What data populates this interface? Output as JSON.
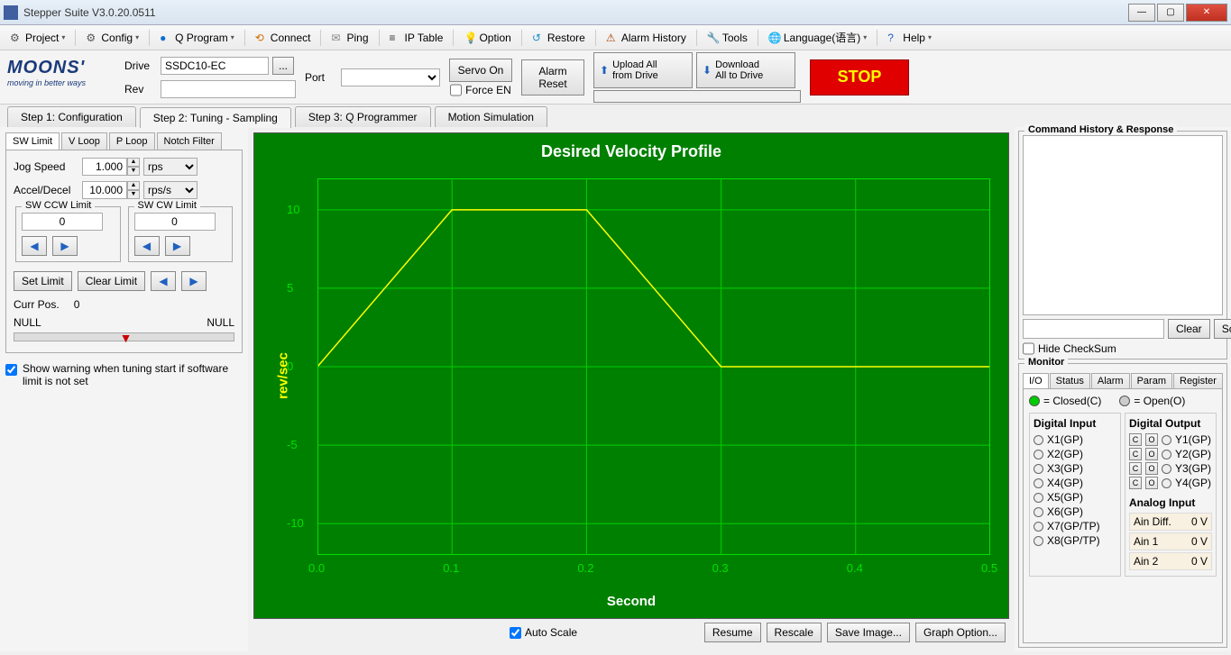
{
  "window": {
    "title": "Stepper Suite V3.0.20.0511"
  },
  "menu": [
    "Project",
    "Config",
    "Q Program",
    "Connect",
    "Ping",
    "IP Table",
    "Option",
    "Restore",
    "Alarm History",
    "Tools",
    "Language(语言)",
    "Help"
  ],
  "logo": {
    "line1": "MOONS'",
    "line2": "moving in better ways"
  },
  "top": {
    "drive_label": "Drive",
    "drive_value": "SSDC10-EC",
    "rev_label": "Rev",
    "rev_value": "",
    "port_label": "Port",
    "port_value": "",
    "servo_on": "Servo On",
    "force_en": "Force EN",
    "alarm_reset": "Alarm\nReset",
    "upload": "Upload All\nfrom Drive",
    "download": "Download\nAll to Drive",
    "stop": "STOP"
  },
  "main_tabs": [
    "Step 1: Configuration",
    "Step 2: Tuning - Sampling",
    "Step 3: Q Programmer",
    "Motion Simulation"
  ],
  "main_tab_active": 1,
  "sub_tabs": [
    "SW Limit",
    "V Loop",
    "P Loop",
    "Notch Filter"
  ],
  "sub_tab_active": 0,
  "sw": {
    "jog_label": "Jog Speed",
    "jog_val": "1.000",
    "jog_unit": "rps",
    "accel_label": "Accel/Decel",
    "accel_val": "10.000",
    "accel_unit": "rps/s",
    "ccw_title": "SW CCW Limit",
    "ccw_val": "0",
    "cw_title": "SW CW Limit",
    "cw_val": "0",
    "set_limit": "Set Limit",
    "clear_limit": "Clear Limit",
    "curr_pos_label": "Curr Pos.",
    "curr_pos_val": "0",
    "null_l": "NULL",
    "null_r": "NULL",
    "warn": "Show warning when tuning start if software limit is not set"
  },
  "chart": {
    "title": "Desired Velocity Profile",
    "xlabel": "Second",
    "ylabel": "rev/sec",
    "bg": "#008000",
    "grid": "#00d000",
    "axis_text": "#00e000",
    "line": "#ffff00",
    "xlim": [
      0.0,
      0.5
    ],
    "xticks": [
      0.0,
      0.1,
      0.2,
      0.3,
      0.4,
      0.5
    ],
    "ylim": [
      -12,
      12
    ],
    "yticks": [
      -10,
      -5,
      0,
      5,
      10
    ],
    "series": {
      "x": [
        0.0,
        0.1,
        0.2,
        0.3,
        0.5
      ],
      "y": [
        0,
        10,
        10,
        0,
        0
      ]
    }
  },
  "chart_btns": {
    "auto_scale": "Auto Scale",
    "resume": "Resume",
    "rescale": "Rescale",
    "save_img": "Save Image...",
    "graph_opt": "Graph Option..."
  },
  "right": {
    "history_title": "Command History & Response",
    "clear": "Clear",
    "script": "Script",
    "hide_cs": "Hide CheckSum",
    "monitor_title": "Monitor",
    "mon_tabs": [
      "I/O",
      "Status",
      "Alarm",
      "Param",
      "Register"
    ],
    "mon_tab_active": 0,
    "legend_closed": "= Closed(C)",
    "legend_open": "= Open(O)",
    "di_title": "Digital Input",
    "do_title": "Digital Output",
    "di": [
      "X1(GP)",
      "X2(GP)",
      "X3(GP)",
      "X4(GP)",
      "X5(GP)",
      "X6(GP)",
      "X7(GP/TP)",
      "X8(GP/TP)"
    ],
    "do": [
      "Y1(GP)",
      "Y2(GP)",
      "Y3(GP)",
      "Y4(GP)"
    ],
    "ai_title": "Analog Input",
    "ai": [
      [
        "Ain Diff.",
        "0 V"
      ],
      [
        "Ain 1",
        "0 V"
      ],
      [
        "Ain 2",
        "0 V"
      ]
    ]
  }
}
